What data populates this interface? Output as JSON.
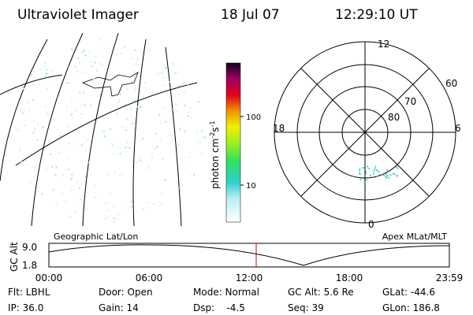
{
  "header": {
    "title": "Ultraviolet Imager",
    "date": "18 Jul 07",
    "time": "12:29:10 UT"
  },
  "colorbar": {
    "label": {
      "unit": "photon cm",
      "exp1": "-2",
      "unit2": "s",
      "exp2": "-1"
    },
    "ticks": [
      "100",
      "10"
    ]
  },
  "polar": {
    "mlt_labels": {
      "top": "12",
      "right": "6",
      "bottom": "0",
      "left": "18"
    },
    "lat_labels": [
      "60",
      "70",
      "80"
    ]
  },
  "panel_labels": {
    "left": "Geographic Lat/Lon",
    "right": "Apex MLat/MLT"
  },
  "altitude": {
    "axis_label": "GC Alt",
    "yticks": [
      "9.0",
      "1.8"
    ],
    "xticks": [
      "00:00",
      "06:00",
      "12:00",
      "18:00",
      "23:59"
    ]
  },
  "footer": {
    "rows": [
      [
        "Flt: LBHL",
        "Door: Open",
        "Mode: Normal",
        "GC Alt: 5.6 Re",
        "GLat: -44.6"
      ],
      [
        "IP: 36.0",
        "Gain: 14",
        "Dsp:    -4.5",
        "Seq: 39",
        "GLon: 186.8"
      ]
    ]
  }
}
